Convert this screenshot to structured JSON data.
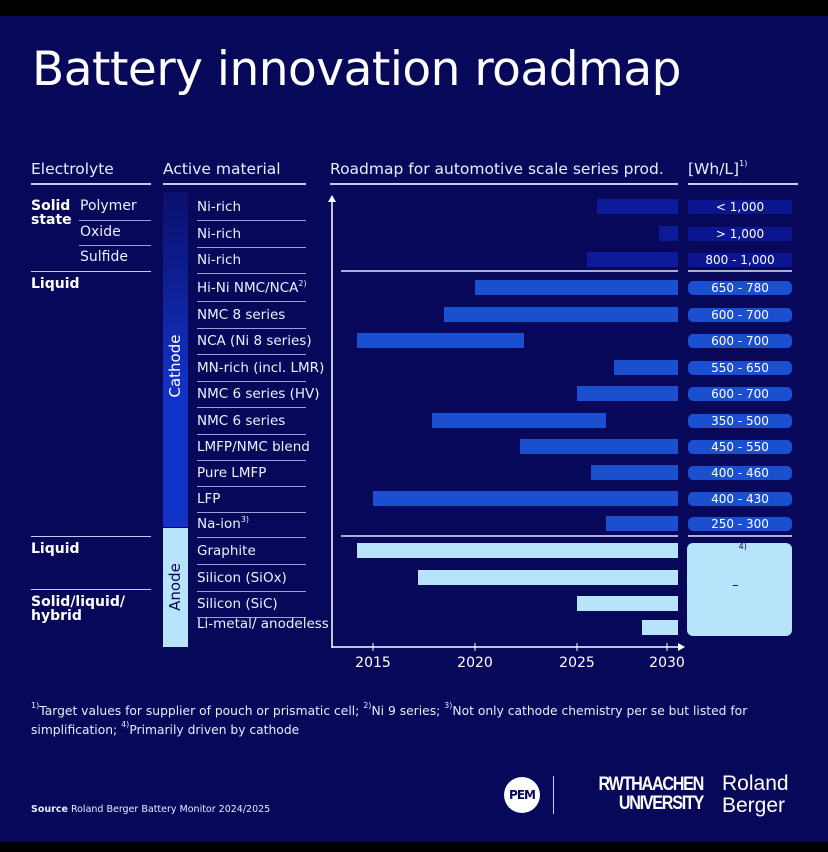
{
  "title": "Battery innovation roadmap",
  "headers": {
    "electrolyte": "Electrolyte",
    "active_material": "Active material",
    "roadmap": "Roadmap for automotive scale series prod.",
    "unit": "[Wh/L]",
    "unit_note": "1)"
  },
  "electrolyte_groups": {
    "solid_state": "Solid state",
    "polymer": "Polymer",
    "oxide": "Oxide",
    "sulfide": "Sulfide",
    "liquid_cathode": "Liquid",
    "liquid_anode": "Liquid",
    "hybrid": "Solid/liquid/ hybrid"
  },
  "material_groups": {
    "cathode": "Cathode",
    "anode": "Anode"
  },
  "anode_wh": "–",
  "anode_wh_note": "4)",
  "colors": {
    "background": "#07085a",
    "cathode_bar": "#1a4fd0",
    "anode_bar": "#b8e4fb",
    "faded_bar": "#0d1a9a"
  },
  "chart_data": {
    "type": "bar",
    "orientation": "horizontal-gantt",
    "xlabel": "",
    "xlim": [
      2013,
      2030
    ],
    "xticks": [
      2015,
      2020,
      2025,
      2030
    ],
    "rows": [
      {
        "label": "Ni-rich",
        "note": "",
        "start": 2026,
        "end": 2030,
        "wh": "< 1,000",
        "group": "cathode",
        "faded": true
      },
      {
        "label": "Ni-rich",
        "note": "",
        "start": 2029,
        "end": 2030,
        "wh": "> 1,000",
        "group": "cathode",
        "faded": true
      },
      {
        "label": "Ni-rich",
        "note": "",
        "start": 2025.5,
        "end": 2030,
        "wh": "800 - 1,000",
        "group": "cathode",
        "faded": true
      },
      {
        "label": "Hi-Ni NMC/NCA",
        "note": "2)",
        "start": 2020,
        "end": 2030,
        "wh": "650 - 780",
        "group": "cathode"
      },
      {
        "label": "NMC 8 series",
        "note": "",
        "start": 2018.5,
        "end": 2030,
        "wh": "600 - 700",
        "group": "cathode"
      },
      {
        "label": "NCA (Ni 8 series)",
        "note": "",
        "start": 2014.2,
        "end": 2022.4,
        "wh": "600 - 700",
        "group": "cathode"
      },
      {
        "label": "MN-rich (incl. LMR)",
        "note": "",
        "start": 2026.8,
        "end": 2030,
        "wh": "550 - 650",
        "group": "cathode"
      },
      {
        "label": "NMC 6 series (HV)",
        "note": "",
        "start": 2025,
        "end": 2030,
        "wh": "600 - 700",
        "group": "cathode"
      },
      {
        "label": "NMC 6 series",
        "note": "",
        "start": 2017.9,
        "end": 2026.4,
        "wh": "350 - 500",
        "group": "cathode"
      },
      {
        "label": "LMFP/NMC blend",
        "note": "",
        "start": 2022.2,
        "end": 2030,
        "wh": "450 - 550",
        "group": "cathode"
      },
      {
        "label": "Pure LMFP",
        "note": "",
        "start": 2025.7,
        "end": 2030,
        "wh": "400 - 460",
        "group": "cathode"
      },
      {
        "label": "LFP",
        "note": "",
        "start": 2015,
        "end": 2030,
        "wh": "400 - 430",
        "group": "cathode"
      },
      {
        "label": "Na-ion",
        "note": "3)",
        "start": 2026.4,
        "end": 2030,
        "wh": "250 - 300",
        "group": "cathode"
      },
      {
        "label": "Graphite",
        "note": "",
        "start": 2014.2,
        "end": 2030,
        "wh": "",
        "group": "anode"
      },
      {
        "label": "Silicon (SiOx)",
        "note": "",
        "start": 2017.2,
        "end": 2030,
        "wh": "",
        "group": "anode"
      },
      {
        "label": "Silicon (SiC)",
        "note": "",
        "start": 2025,
        "end": 2030,
        "wh": "",
        "group": "anode"
      },
      {
        "label": "Li-metal/ anodeless",
        "note": "",
        "start": 2028.2,
        "end": 2030,
        "wh": "",
        "group": "anode"
      }
    ]
  },
  "footnotes": {
    "n1": "1)",
    "t1": "Target values for supplier of pouch or prismatic cell; ",
    "n2": "2)",
    "t2": "Ni 9 series; ",
    "n3": "3)",
    "t3": "Not only cathode chemistry per se but listed for simplification; ",
    "n4": "4)",
    "t4": "Primarily driven by cathode"
  },
  "source": {
    "label": "Source",
    "text": "Roland Berger Battery Monitor 2024/2025"
  },
  "logos": {
    "pem": "PEM",
    "rwth_1": "RWTHAACHEN",
    "rwth_2": "UNIVERSITY",
    "rb_1": "Roland",
    "rb_2": "Berger"
  }
}
